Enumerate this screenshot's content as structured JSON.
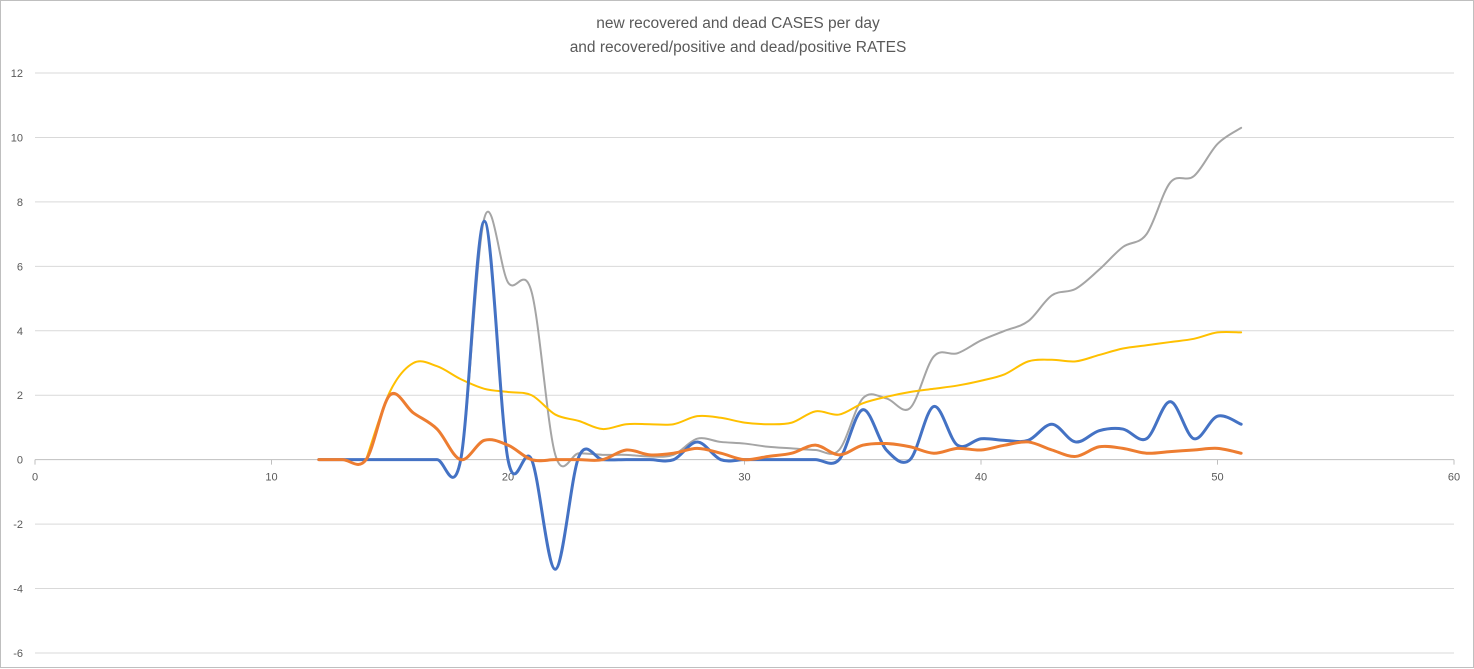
{
  "chart_data": {
    "type": "scatter",
    "title": "new recovered and dead CASES per day",
    "subtitle": "and recovered/positive and dead/positive RATES",
    "xlabel": "",
    "ylabel": "",
    "xlim": [
      0,
      60
    ],
    "ylim": [
      -6,
      12
    ],
    "x_ticks": [
      0,
      10,
      20,
      30,
      40,
      50,
      60
    ],
    "y_ticks": [
      -6,
      -4,
      -2,
      0,
      2,
      4,
      6,
      8,
      10,
      12
    ],
    "grid": true,
    "legend": "none",
    "smooth": true,
    "series": [
      {
        "color": "#a5a5a5",
        "points": [
          [
            12,
            0
          ],
          [
            13,
            0
          ],
          [
            14,
            0
          ],
          [
            15,
            0
          ],
          [
            16,
            0
          ],
          [
            17,
            0
          ],
          [
            18,
            0
          ],
          [
            19,
            7.5
          ],
          [
            20,
            5.5
          ],
          [
            21,
            5.2
          ],
          [
            22,
            0.15
          ],
          [
            23,
            0.2
          ],
          [
            24,
            0.15
          ],
          [
            25,
            0.15
          ],
          [
            26,
            0.1
          ],
          [
            27,
            0.15
          ],
          [
            28,
            0.65
          ],
          [
            29,
            0.55
          ],
          [
            30,
            0.5
          ],
          [
            31,
            0.4
          ],
          [
            32,
            0.35
          ],
          [
            33,
            0.3
          ],
          [
            34,
            0.3
          ],
          [
            35,
            1.9
          ],
          [
            36,
            1.9
          ],
          [
            37,
            1.6
          ],
          [
            38,
            3.2
          ],
          [
            39,
            3.3
          ],
          [
            40,
            3.7
          ],
          [
            41,
            4.0
          ],
          [
            42,
            4.3
          ],
          [
            43,
            5.1
          ],
          [
            44,
            5.3
          ],
          [
            45,
            5.9
          ],
          [
            46,
            6.6
          ],
          [
            47,
            7.0
          ],
          [
            48,
            8.6
          ],
          [
            49,
            8.8
          ],
          [
            50,
            9.8
          ],
          [
            51,
            10.3
          ]
        ]
      },
      {
        "color": "#ffc000",
        "points": [
          [
            14,
            0
          ],
          [
            15,
            2.1
          ],
          [
            16,
            3.0
          ],
          [
            17,
            2.9
          ],
          [
            18,
            2.5
          ],
          [
            19,
            2.2
          ],
          [
            20,
            2.1
          ],
          [
            21,
            2.0
          ],
          [
            22,
            1.4
          ],
          [
            23,
            1.2
          ],
          [
            24,
            0.95
          ],
          [
            25,
            1.1
          ],
          [
            26,
            1.1
          ],
          [
            27,
            1.1
          ],
          [
            28,
            1.35
          ],
          [
            29,
            1.3
          ],
          [
            30,
            1.15
          ],
          [
            31,
            1.1
          ],
          [
            32,
            1.15
          ],
          [
            33,
            1.5
          ],
          [
            34,
            1.4
          ],
          [
            35,
            1.75
          ],
          [
            36,
            1.95
          ],
          [
            37,
            2.1
          ],
          [
            38,
            2.2
          ],
          [
            39,
            2.3
          ],
          [
            40,
            2.45
          ],
          [
            41,
            2.65
          ],
          [
            42,
            3.05
          ],
          [
            43,
            3.1
          ],
          [
            44,
            3.05
          ],
          [
            45,
            3.25
          ],
          [
            46,
            3.45
          ],
          [
            47,
            3.55
          ],
          [
            48,
            3.65
          ],
          [
            49,
            3.75
          ],
          [
            50,
            3.95
          ],
          [
            51,
            3.95
          ]
        ]
      },
      {
        "color": "#4472c4",
        "points": [
          [
            12,
            0
          ],
          [
            13,
            0
          ],
          [
            14,
            0
          ],
          [
            15,
            0
          ],
          [
            16,
            0
          ],
          [
            17,
            0
          ],
          [
            18,
            0
          ],
          [
            19,
            7.4
          ],
          [
            20,
            0
          ],
          [
            21,
            0
          ],
          [
            22,
            -3.4
          ],
          [
            23,
            0.1
          ],
          [
            24,
            0
          ],
          [
            25,
            0
          ],
          [
            26,
            0
          ],
          [
            27,
            0
          ],
          [
            28,
            0.55
          ],
          [
            29,
            0
          ],
          [
            30,
            0
          ],
          [
            31,
            0
          ],
          [
            32,
            0
          ],
          [
            33,
            0
          ],
          [
            34,
            0
          ],
          [
            35,
            1.55
          ],
          [
            36,
            0.3
          ],
          [
            37,
            0
          ],
          [
            38,
            1.65
          ],
          [
            39,
            0.45
          ],
          [
            40,
            0.65
          ],
          [
            41,
            0.6
          ],
          [
            42,
            0.6
          ],
          [
            43,
            1.1
          ],
          [
            44,
            0.55
          ],
          [
            45,
            0.9
          ],
          [
            46,
            0.95
          ],
          [
            47,
            0.65
          ],
          [
            48,
            1.8
          ],
          [
            49,
            0.65
          ],
          [
            50,
            1.35
          ],
          [
            51,
            1.1
          ]
        ]
      },
      {
        "color": "#ed7d31",
        "points": [
          [
            12,
            0
          ],
          [
            13,
            0
          ],
          [
            14,
            0
          ],
          [
            15,
            2.0
          ],
          [
            16,
            1.45
          ],
          [
            17,
            0.95
          ],
          [
            18,
            0
          ],
          [
            19,
            0.6
          ],
          [
            20,
            0.45
          ],
          [
            21,
            0
          ],
          [
            22,
            0
          ],
          [
            23,
            0
          ],
          [
            24,
            0
          ],
          [
            25,
            0.3
          ],
          [
            26,
            0.15
          ],
          [
            27,
            0.2
          ],
          [
            28,
            0.35
          ],
          [
            29,
            0.2
          ],
          [
            30,
            0
          ],
          [
            31,
            0.1
          ],
          [
            32,
            0.2
          ],
          [
            33,
            0.45
          ],
          [
            34,
            0.15
          ],
          [
            35,
            0.45
          ],
          [
            36,
            0.5
          ],
          [
            37,
            0.4
          ],
          [
            38,
            0.2
          ],
          [
            39,
            0.35
          ],
          [
            40,
            0.3
          ],
          [
            41,
            0.45
          ],
          [
            42,
            0.55
          ],
          [
            43,
            0.3
          ],
          [
            44,
            0.1
          ],
          [
            45,
            0.4
          ],
          [
            46,
            0.35
          ],
          [
            47,
            0.2
          ],
          [
            48,
            0.25
          ],
          [
            49,
            0.3
          ],
          [
            50,
            0.35
          ],
          [
            51,
            0.2
          ]
        ]
      }
    ]
  }
}
